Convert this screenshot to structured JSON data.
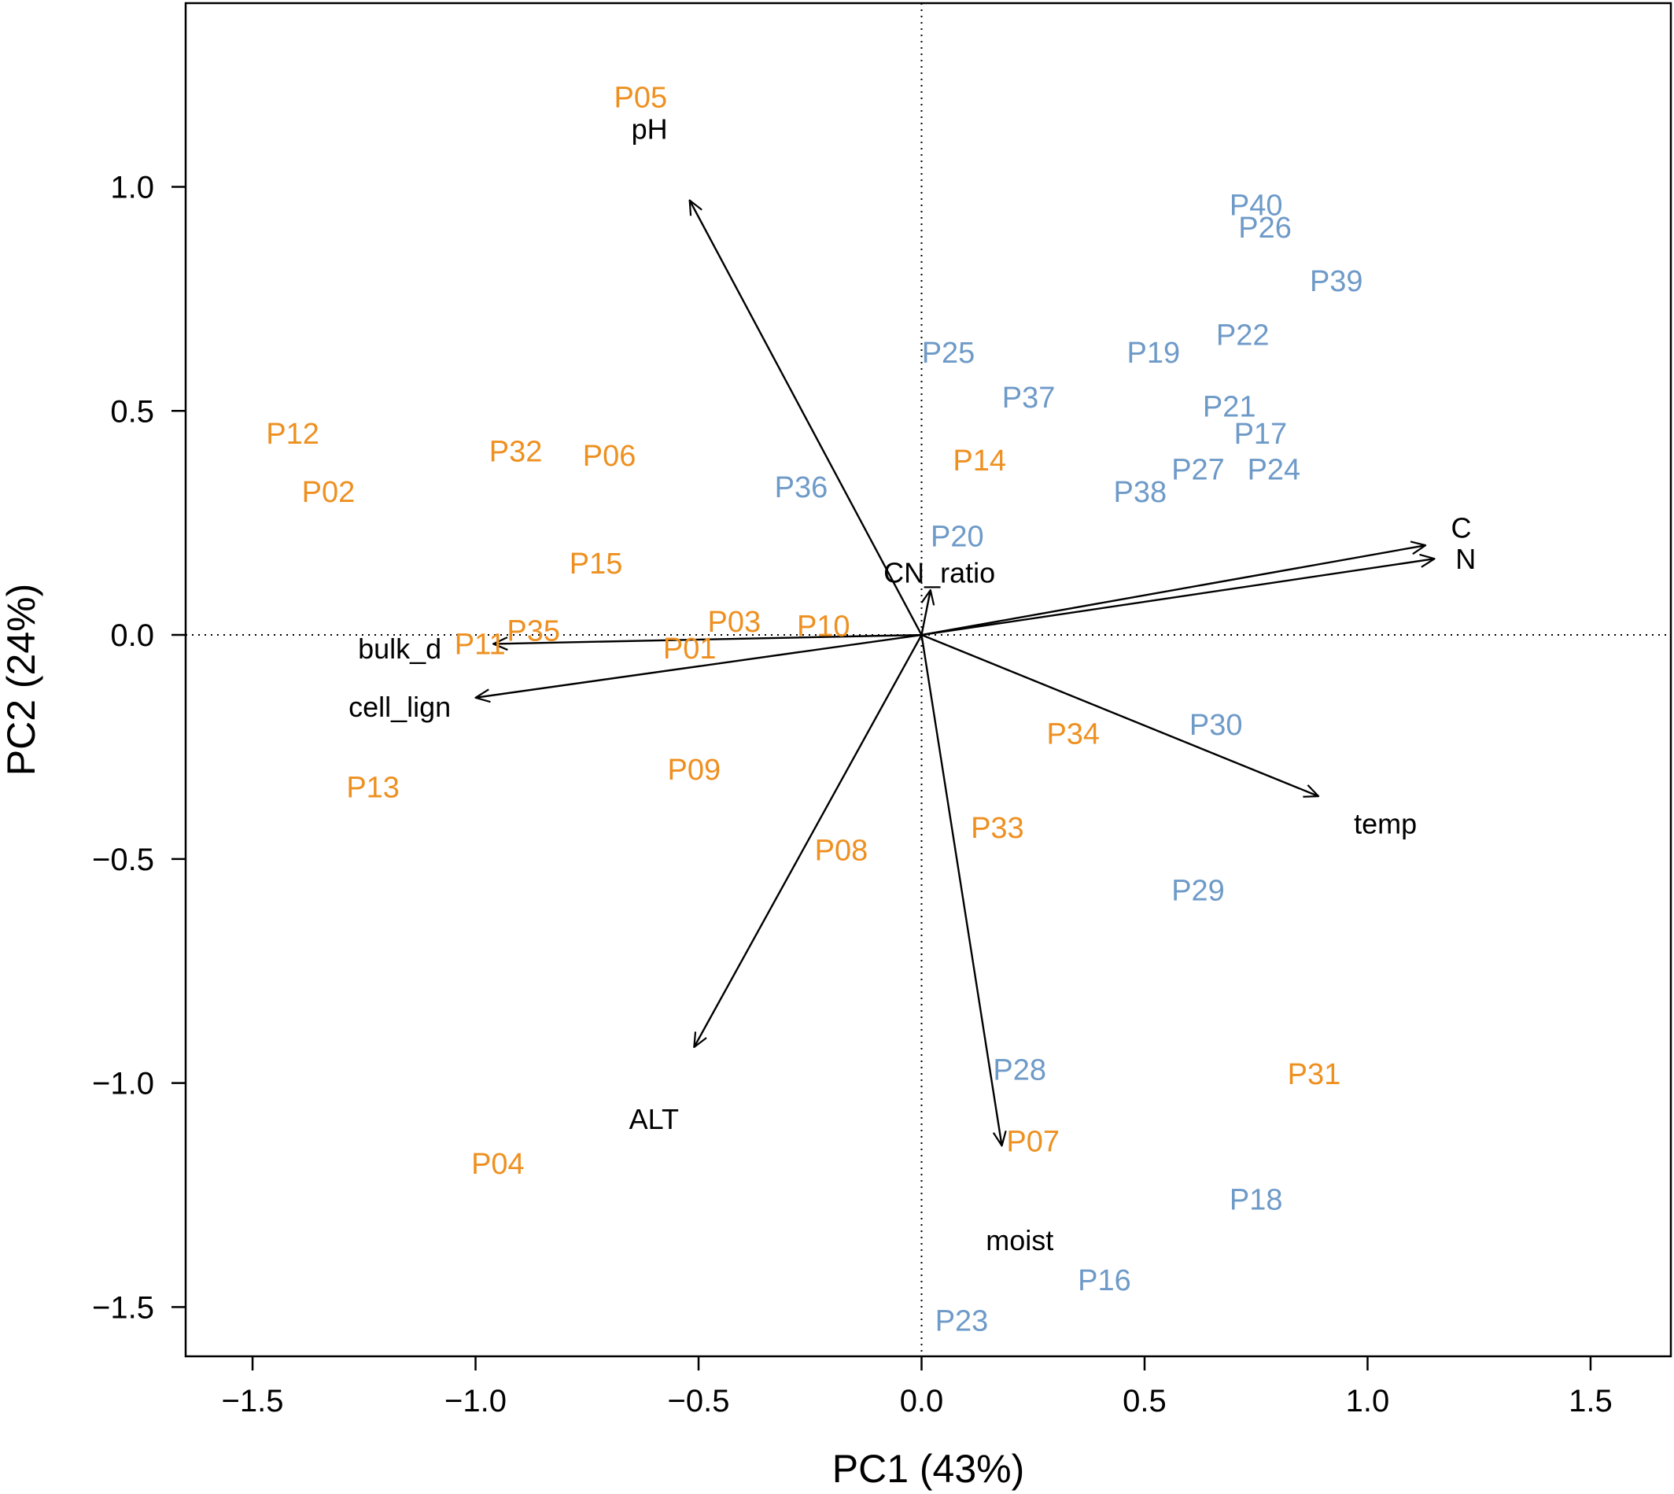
{
  "chart_data": {
    "type": "scatter",
    "subtype": "biplot",
    "title": "",
    "xlabel": "PC1 (43%)",
    "ylabel": "PC2 (24%)",
    "xlim": [
      -1.65,
      1.68
    ],
    "ylim": [
      -1.61,
      1.41
    ],
    "xticks": [
      -1.5,
      -1.0,
      -0.5,
      0.0,
      0.5,
      1.0,
      1.5
    ],
    "yticks": [
      -1.5,
      -1.0,
      -0.5,
      0.0,
      0.5,
      1.0
    ],
    "xtick_labels": [
      "−1.5",
      "−1.0",
      "−0.5",
      "0.0",
      "0.5",
      "1.0",
      "1.5"
    ],
    "ytick_labels": [
      "−1.5",
      "−1.0",
      "−0.5",
      "0.0",
      "0.5",
      "1.0"
    ],
    "reference_lines": {
      "x": 0,
      "y": 0,
      "style": "dotted"
    },
    "grid": false,
    "colors": {
      "group_orange": "#EE9020",
      "group_blue": "#6E9AC8",
      "vectors": "#000000"
    },
    "observations": [
      {
        "label": "P05",
        "x": -0.63,
        "y": 1.2,
        "group": "orange"
      },
      {
        "label": "P12",
        "x": -1.41,
        "y": 0.45,
        "group": "orange"
      },
      {
        "label": "P02",
        "x": -1.33,
        "y": 0.32,
        "group": "orange"
      },
      {
        "label": "P32",
        "x": -0.91,
        "y": 0.41,
        "group": "orange"
      },
      {
        "label": "P06",
        "x": -0.7,
        "y": 0.4,
        "group": "orange"
      },
      {
        "label": "P15",
        "x": -0.73,
        "y": 0.16,
        "group": "orange"
      },
      {
        "label": "P14",
        "x": 0.13,
        "y": 0.39,
        "group": "orange"
      },
      {
        "label": "P35",
        "x": -0.87,
        "y": 0.01,
        "group": "orange"
      },
      {
        "label": "P11",
        "x": -0.99,
        "y": -0.02,
        "group": "orange"
      },
      {
        "label": "P03",
        "x": -0.42,
        "y": 0.03,
        "group": "orange"
      },
      {
        "label": "P10",
        "x": -0.22,
        "y": 0.02,
        "group": "orange"
      },
      {
        "label": "P01",
        "x": -0.52,
        "y": -0.03,
        "group": "orange"
      },
      {
        "label": "P13",
        "x": -1.23,
        "y": -0.34,
        "group": "orange"
      },
      {
        "label": "P09",
        "x": -0.51,
        "y": -0.3,
        "group": "orange"
      },
      {
        "label": "P34",
        "x": 0.34,
        "y": -0.22,
        "group": "orange"
      },
      {
        "label": "P08",
        "x": -0.18,
        "y": -0.48,
        "group": "orange"
      },
      {
        "label": "P33",
        "x": 0.17,
        "y": -0.43,
        "group": "orange"
      },
      {
        "label": "P31",
        "x": 0.88,
        "y": -0.98,
        "group": "orange"
      },
      {
        "label": "P07",
        "x": 0.25,
        "y": -1.13,
        "group": "orange"
      },
      {
        "label": "P04",
        "x": -0.95,
        "y": -1.18,
        "group": "orange"
      },
      {
        "label": "P40",
        "x": 0.75,
        "y": 0.96,
        "group": "blue"
      },
      {
        "label": "P26",
        "x": 0.77,
        "y": 0.91,
        "group": "blue"
      },
      {
        "label": "P39",
        "x": 0.93,
        "y": 0.79,
        "group": "blue"
      },
      {
        "label": "P22",
        "x": 0.72,
        "y": 0.67,
        "group": "blue"
      },
      {
        "label": "P19",
        "x": 0.52,
        "y": 0.63,
        "group": "blue"
      },
      {
        "label": "P25",
        "x": 0.06,
        "y": 0.63,
        "group": "blue"
      },
      {
        "label": "P37",
        "x": 0.24,
        "y": 0.53,
        "group": "blue"
      },
      {
        "label": "P21",
        "x": 0.69,
        "y": 0.51,
        "group": "blue"
      },
      {
        "label": "P17",
        "x": 0.76,
        "y": 0.45,
        "group": "blue"
      },
      {
        "label": "P27",
        "x": 0.62,
        "y": 0.37,
        "group": "blue"
      },
      {
        "label": "P24",
        "x": 0.79,
        "y": 0.37,
        "group": "blue"
      },
      {
        "label": "P38",
        "x": 0.49,
        "y": 0.32,
        "group": "blue"
      },
      {
        "label": "P36",
        "x": -0.27,
        "y": 0.33,
        "group": "blue"
      },
      {
        "label": "P20",
        "x": 0.08,
        "y": 0.22,
        "group": "blue"
      },
      {
        "label": "P30",
        "x": 0.66,
        "y": -0.2,
        "group": "blue"
      },
      {
        "label": "P29",
        "x": 0.62,
        "y": -0.57,
        "group": "blue"
      },
      {
        "label": "P28",
        "x": 0.22,
        "y": -0.97,
        "group": "blue"
      },
      {
        "label": "P18",
        "x": 0.75,
        "y": -1.26,
        "group": "blue"
      },
      {
        "label": "P16",
        "x": 0.41,
        "y": -1.44,
        "group": "blue"
      },
      {
        "label": "P23",
        "x": 0.09,
        "y": -1.53,
        "group": "blue"
      }
    ],
    "vectors": [
      {
        "label": "pH",
        "x": -0.52,
        "y": 0.97,
        "label_x": -0.61,
        "label_y": 1.13
      },
      {
        "label": "CN_ratio",
        "x": 0.02,
        "y": 0.1,
        "label_x": 0.04,
        "label_y": 0.14
      },
      {
        "label": "C",
        "x": 1.13,
        "y": 0.2,
        "label_x": 1.21,
        "label_y": 0.24
      },
      {
        "label": "N",
        "x": 1.15,
        "y": 0.17,
        "label_x": 1.22,
        "label_y": 0.17
      },
      {
        "label": "bulk_d",
        "x": -0.96,
        "y": -0.02,
        "label_x": -1.17,
        "label_y": -0.03
      },
      {
        "label": "cell_lign",
        "x": -1.0,
        "y": -0.14,
        "label_x": -1.17,
        "label_y": -0.16
      },
      {
        "label": "temp",
        "x": 0.89,
        "y": -0.36,
        "label_x": 1.04,
        "label_y": -0.42
      },
      {
        "label": "ALT",
        "x": -0.51,
        "y": -0.92,
        "label_x": -0.6,
        "label_y": -1.08
      },
      {
        "label": "moist",
        "x": 0.18,
        "y": -1.14,
        "label_x": 0.22,
        "label_y": -1.35
      }
    ]
  }
}
